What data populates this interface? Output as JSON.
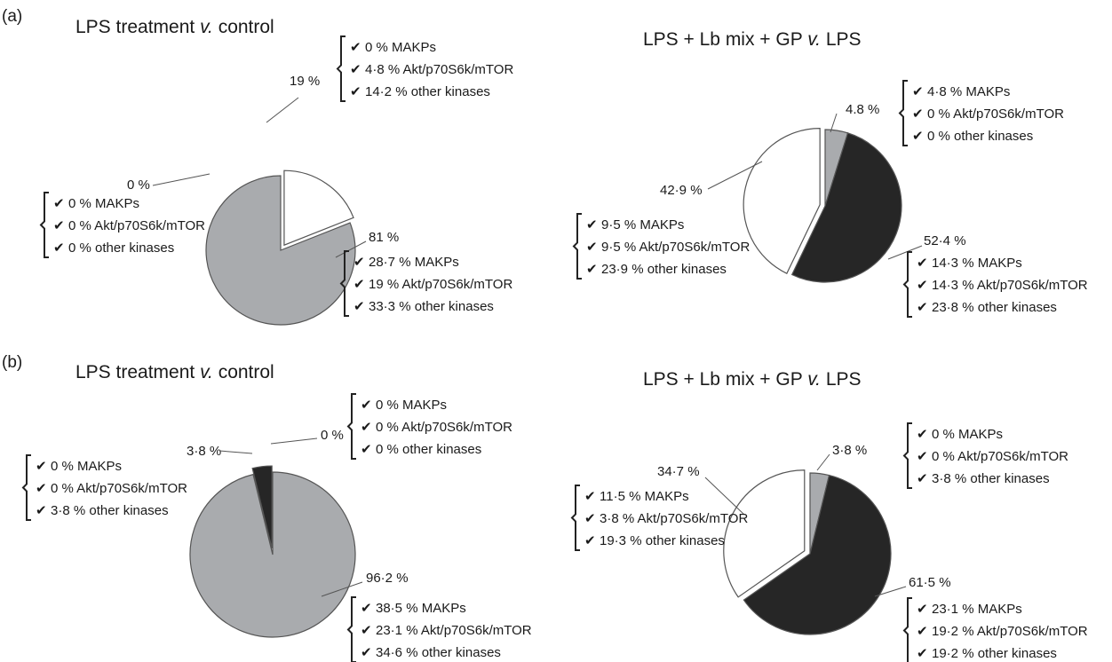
{
  "panels": [
    {
      "label": "(a)"
    },
    {
      "label": "(b)"
    }
  ],
  "colors": {
    "light_gray": "#a9abae",
    "dark": "#262626",
    "white": "#ffffff",
    "edge": "#555555"
  },
  "chart_data": [
    {
      "type": "pie",
      "panel": "(a)",
      "title_parts": [
        "LPS treatment ",
        "v.",
        " control"
      ],
      "slices": [
        {
          "value": 19,
          "label": "19 %",
          "color": "#ffffff",
          "exploded": true,
          "details": [
            "0 % MAKPs",
            "4·8 % Akt/p70S6k/mTOR",
            "14·2 % other kinases"
          ]
        },
        {
          "value": 81,
          "label": "81 %",
          "color": "#a9abae",
          "exploded": false,
          "details": [
            "28·7 % MAKPs",
            "19 % Akt/p70S6k/mTOR",
            "33·3 % other kinases"
          ]
        },
        {
          "value": 0,
          "label": "0 %",
          "color": "#262626",
          "exploded": false,
          "details": [
            "0 % MAKPs",
            "0 % Akt/p70S6k/mTOR",
            "0 % other kinases"
          ]
        }
      ]
    },
    {
      "type": "pie",
      "panel": "(a)",
      "title_parts": [
        "LPS + Lb mix + GP ",
        "v.",
        " LPS"
      ],
      "slices": [
        {
          "value": 4.8,
          "label": "4.8 %",
          "color": "#a9abae",
          "exploded": false,
          "details": [
            "4·8 % MAKPs",
            "0 % Akt/p70S6k/mTOR",
            "0 % other kinases"
          ]
        },
        {
          "value": 52.4,
          "label": "52·4 %",
          "color": "#262626",
          "exploded": false,
          "details": [
            "14·3 % MAKPs",
            "14·3 % Akt/p70S6k/mTOR",
            "23·8 % other kinases"
          ]
        },
        {
          "value": 42.9,
          "label": "42·9 %",
          "color": "#ffffff",
          "exploded": true,
          "details": [
            "9·5 % MAKPs",
            "9·5 % Akt/p70S6k/mTOR",
            "23·9 % other kinases"
          ]
        }
      ]
    },
    {
      "type": "pie",
      "panel": "(b)",
      "title_parts": [
        "LPS treatment ",
        "v.",
        " control"
      ],
      "slices": [
        {
          "value": 0,
          "label": "0 %",
          "color": "#ffffff",
          "exploded": false,
          "details": [
            "0 % MAKPs",
            "0 % Akt/p70S6k/mTOR",
            "0 % other kinases"
          ]
        },
        {
          "value": 96.2,
          "label": "96·2 %",
          "color": "#a9abae",
          "exploded": false,
          "details": [
            "38·5 % MAKPs",
            "23·1 % Akt/p70S6k/mTOR",
            "34·6 % other kinases"
          ]
        },
        {
          "value": 3.8,
          "label": "3·8 %",
          "color": "#262626",
          "exploded": true,
          "details": [
            "0 % MAKPs",
            "0 % Akt/p70S6k/mTOR",
            "3·8 % other kinases"
          ]
        }
      ]
    },
    {
      "type": "pie",
      "panel": "(b)",
      "title_parts": [
        "LPS + Lb mix + GP ",
        "v.",
        " LPS"
      ],
      "slices": [
        {
          "value": 3.8,
          "label": "3·8 %",
          "color": "#a9abae",
          "exploded": false,
          "details": [
            "0 % MAKPs",
            "0 % Akt/p70S6k/mTOR",
            "3·8 % other kinases"
          ]
        },
        {
          "value": 61.5,
          "label": "61·5 %",
          "color": "#262626",
          "exploded": false,
          "details": [
            "23·1 % MAKPs",
            "19·2 % Akt/p70S6k/mTOR",
            "19·2 % other kinases"
          ]
        },
        {
          "value": 34.7,
          "label": "34·7 %",
          "color": "#ffffff",
          "exploded": true,
          "details": [
            "11·5 % MAKPs",
            "3·8 % Akt/p70S6k/mTOR",
            "19·3 % other kinases"
          ]
        }
      ]
    }
  ]
}
